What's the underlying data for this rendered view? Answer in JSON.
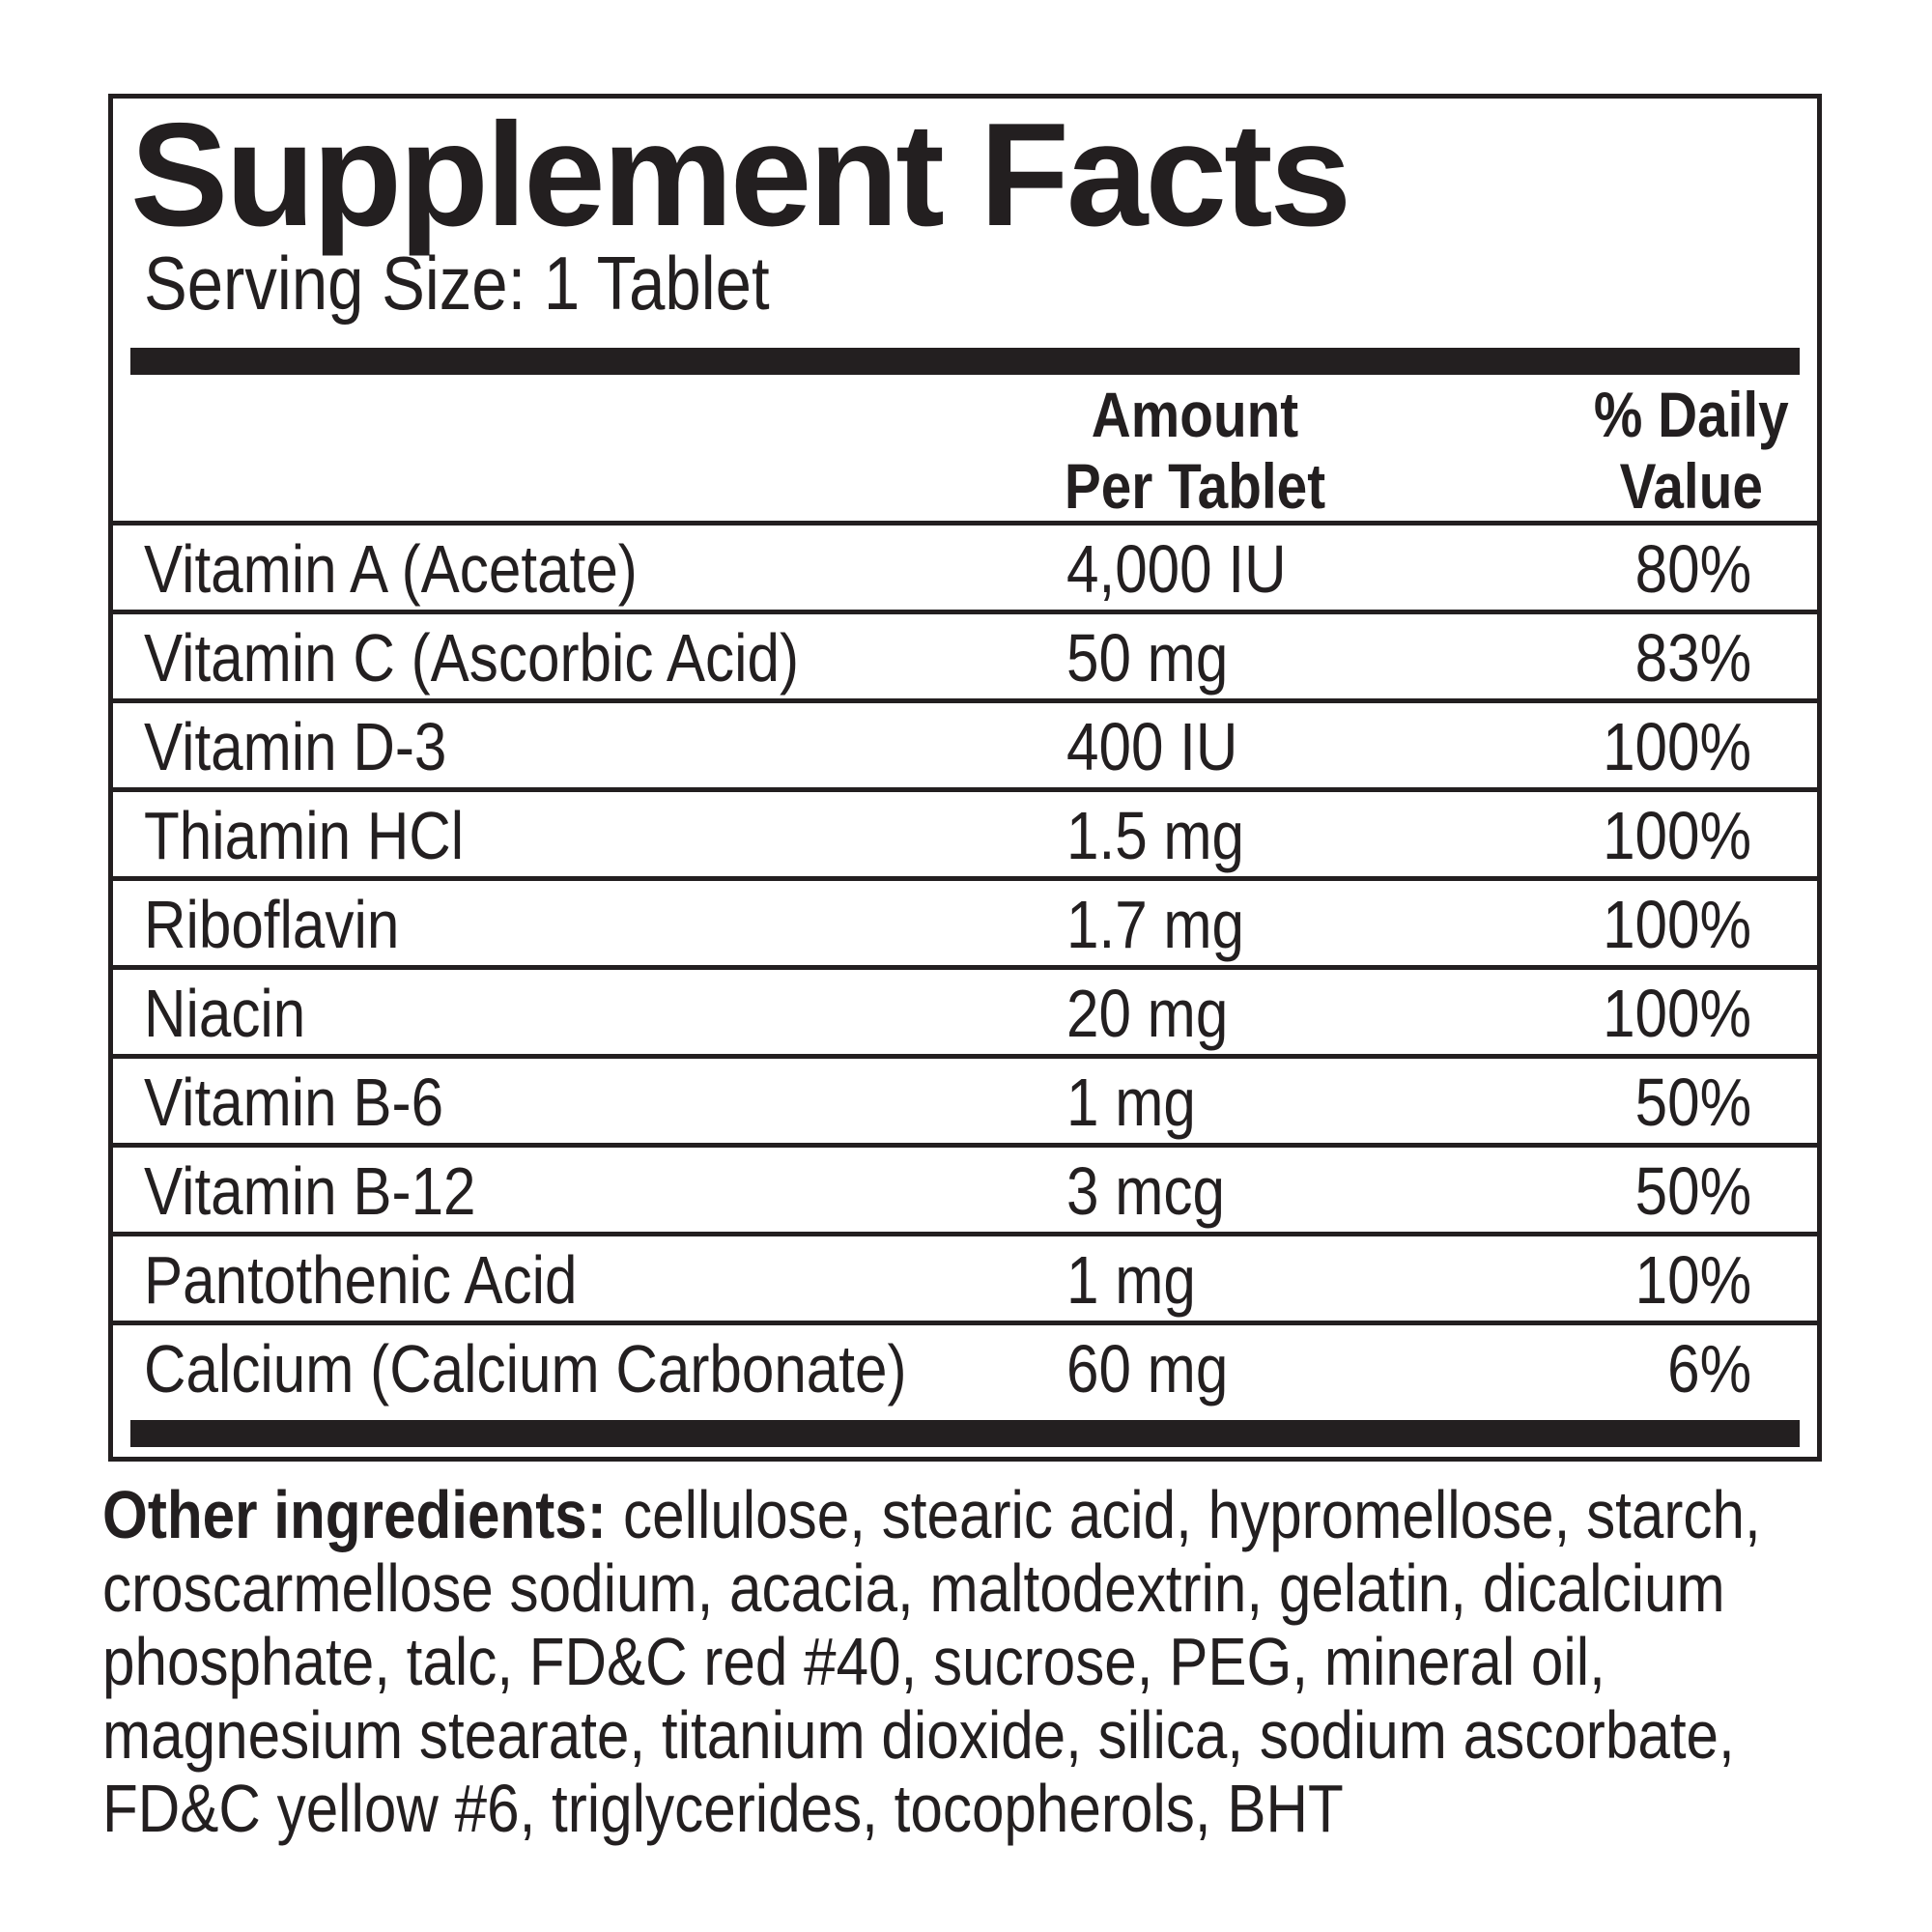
{
  "title": "Supplement Facts",
  "serving_size": "Serving Size: 1 Tablet",
  "headers": {
    "amount": "Amount Per Tablet",
    "daily_value": "% Daily Value"
  },
  "rows": [
    {
      "name": "Vitamin A (Acetate)",
      "amount": "4,000 IU",
      "dv": "80%"
    },
    {
      "name": "Vitamin C (Ascorbic Acid)",
      "amount": "50 mg",
      "dv": "83%"
    },
    {
      "name": "Vitamin D-3",
      "amount": "400 IU",
      "dv": "100%"
    },
    {
      "name": "Thiamin HCl",
      "amount": "1.5 mg",
      "dv": "100%"
    },
    {
      "name": "Riboflavin",
      "amount": "1.7 mg",
      "dv": "100%"
    },
    {
      "name": "Niacin",
      "amount": "20 mg",
      "dv": "100%"
    },
    {
      "name": "Vitamin B-6",
      "amount": "1 mg",
      "dv": "50%"
    },
    {
      "name": "Vitamin B-12",
      "amount": "3 mcg",
      "dv": "50%"
    },
    {
      "name": "Pantothenic Acid",
      "amount": "1 mg",
      "dv": "10%"
    },
    {
      "name": "Calcium (Calcium Carbonate)",
      "amount": "60 mg",
      "dv": "6%"
    }
  ],
  "other_ingredients": {
    "label": "Other ingredients:",
    "text": "cellulose, stearic acid, hypromellose, starch, croscarmellose sodium, acacia, maltodextrin, gelatin, dicalcium phosphate, talc, FD&C red #40, sucrose, PEG, mineral oil, magnesium stearate, titanium dioxide, silica, sodium ascorbate, FD&C yellow #6, triglycerides, tocopherols, BHT"
  }
}
